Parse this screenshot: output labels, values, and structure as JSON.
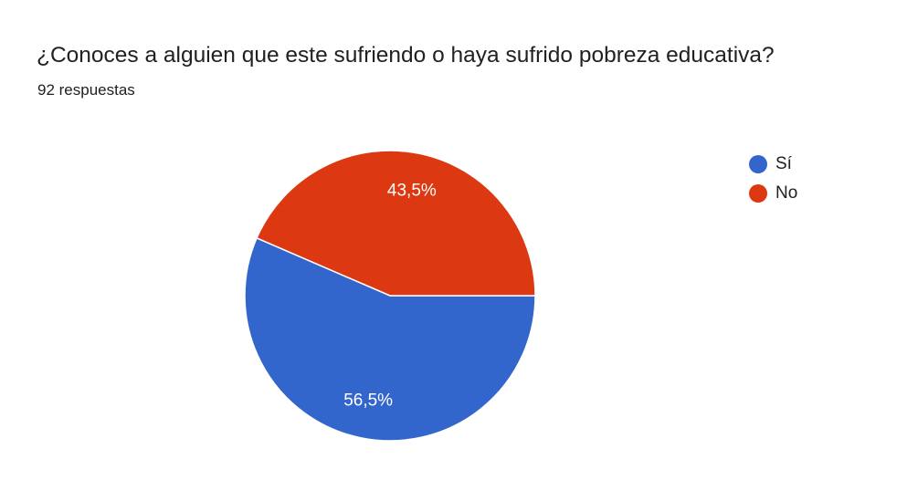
{
  "chart_data": {
    "type": "pie",
    "title": "¿Conoces a alguien que este sufriendo o haya sufrido pobreza educativa?",
    "subtitle": "92 respuestas",
    "categories": [
      "Sí",
      "No"
    ],
    "values": [
      56.5,
      43.5
    ],
    "labels": [
      "56,5%",
      "43,5%"
    ],
    "colors": [
      "#3366cc",
      "#dc3912"
    ],
    "legend_position": "right"
  }
}
